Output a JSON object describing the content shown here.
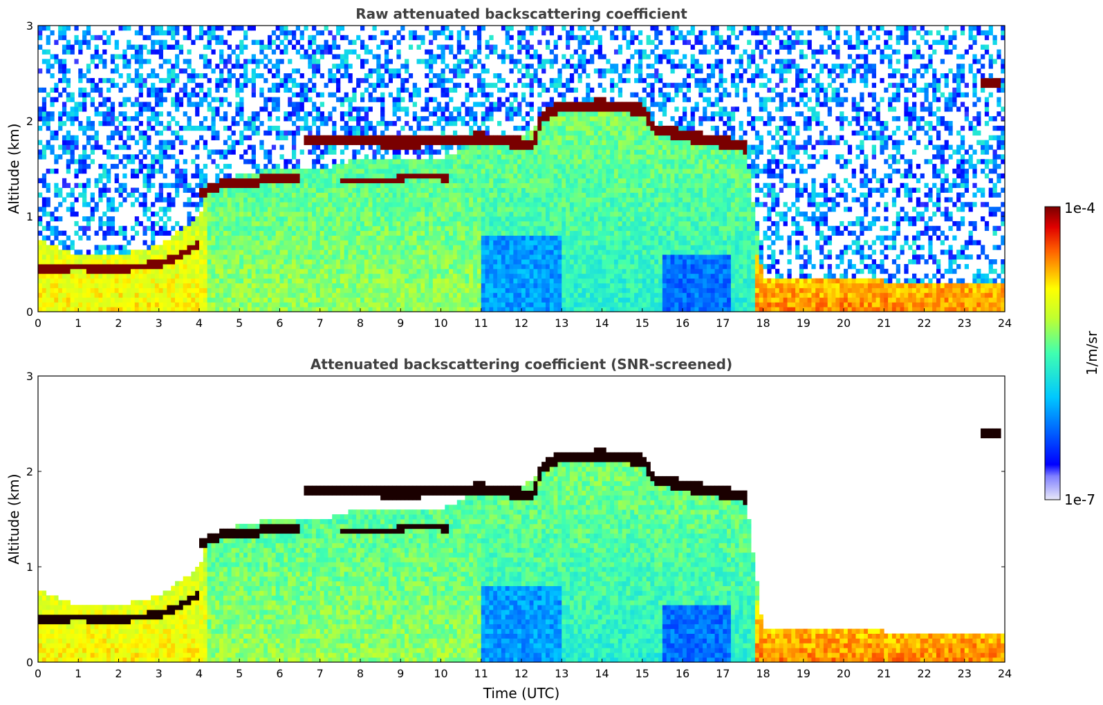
{
  "chart_data": [
    {
      "type": "heatmap",
      "title": "Raw attenuated backscattering coefficient",
      "xlabel": "",
      "ylabel": "Altitude (km)",
      "xlim": [
        0,
        24
      ],
      "ylim": [
        0,
        3
      ],
      "xticks": [
        0,
        1,
        2,
        3,
        4,
        5,
        6,
        7,
        8,
        9,
        10,
        11,
        12,
        13,
        14,
        15,
        16,
        17,
        18,
        19,
        20,
        21,
        22,
        23,
        24
      ],
      "yticks": [
        0,
        1,
        2,
        3
      ],
      "screened": false,
      "layers": {
        "residual_layer_top_km": [
          [
            0,
            0.75
          ],
          [
            1,
            0.6
          ],
          [
            2,
            0.6
          ],
          [
            3,
            0.7
          ],
          [
            3.5,
            0.85
          ],
          [
            4,
            1.0
          ],
          [
            4.2,
            1.3
          ],
          [
            5,
            1.45
          ],
          [
            6,
            1.5
          ],
          [
            7,
            1.5
          ],
          [
            8,
            1.6
          ],
          [
            10,
            1.6
          ],
          [
            11,
            1.8
          ],
          [
            12,
            1.8
          ],
          [
            12.5,
            2.05
          ],
          [
            13,
            2.1
          ],
          [
            15,
            2.1
          ],
          [
            15.5,
            1.9
          ],
          [
            17,
            1.8
          ],
          [
            17.6,
            1.65
          ],
          [
            18,
            0.35
          ],
          [
            24,
            0.3
          ]
        ],
        "cloud_low": {
          "points": [
            [
              0,
              0.45
            ],
            [
              1,
              0.47
            ],
            [
              2,
              0.45
            ],
            [
              3,
              0.5
            ],
            [
              3.5,
              0.58
            ],
            [
              4.0,
              0.72
            ]
          ],
          "thick_km": 0.08
        },
        "cloud_mid": {
          "points": [
            [
              4.0,
              1.25
            ],
            [
              4.5,
              1.33
            ],
            [
              5,
              1.35
            ],
            [
              6,
              1.4
            ],
            [
              6.5,
              1.4
            ]
          ],
          "thick_km": 0.1
        },
        "cloud_mid2": {
          "points": [
            [
              7.5,
              1.37
            ],
            [
              8.5,
              1.38
            ],
            [
              9.5,
              1.42
            ],
            [
              10.2,
              1.4
            ]
          ],
          "thick_km": 0.06
        },
        "cloud_high": {
          "points": [
            [
              6.6,
              1.8
            ],
            [
              8,
              1.8
            ],
            [
              9,
              1.77
            ],
            [
              10,
              1.8
            ],
            [
              11,
              1.82
            ],
            [
              12.3,
              1.75
            ],
            [
              12.5,
              2.05
            ],
            [
              13,
              2.15
            ],
            [
              14,
              2.17
            ],
            [
              15,
              2.12
            ],
            [
              15.3,
              1.92
            ],
            [
              16,
              1.85
            ],
            [
              17,
              1.78
            ],
            [
              17.6,
              1.72
            ]
          ],
          "thick_km": 0.12
        },
        "cloud_late": {
          "points": [
            [
              23.4,
              2.4
            ],
            [
              23.9,
              2.4
            ]
          ],
          "thick_km": 0.05
        }
      }
    },
    {
      "type": "heatmap",
      "title": "Attenuated backscattering coefficient (SNR-screened)",
      "xlabel": "Time (UTC)",
      "ylabel": "Altitude (km)",
      "xlim": [
        0,
        24
      ],
      "ylim": [
        0,
        3
      ],
      "xticks": [
        0,
        1,
        2,
        3,
        4,
        5,
        6,
        7,
        8,
        9,
        10,
        11,
        12,
        13,
        14,
        15,
        16,
        17,
        18,
        19,
        20,
        21,
        22,
        23,
        24
      ],
      "yticks": [
        0,
        1,
        2,
        3
      ],
      "screened": true
    }
  ],
  "colorbar": {
    "label": "1/m/sr",
    "max_label": "1e-4",
    "min_label": "1e-7",
    "colormap": "jet",
    "scale": "log",
    "range": [
      1e-07,
      0.0001
    ]
  }
}
